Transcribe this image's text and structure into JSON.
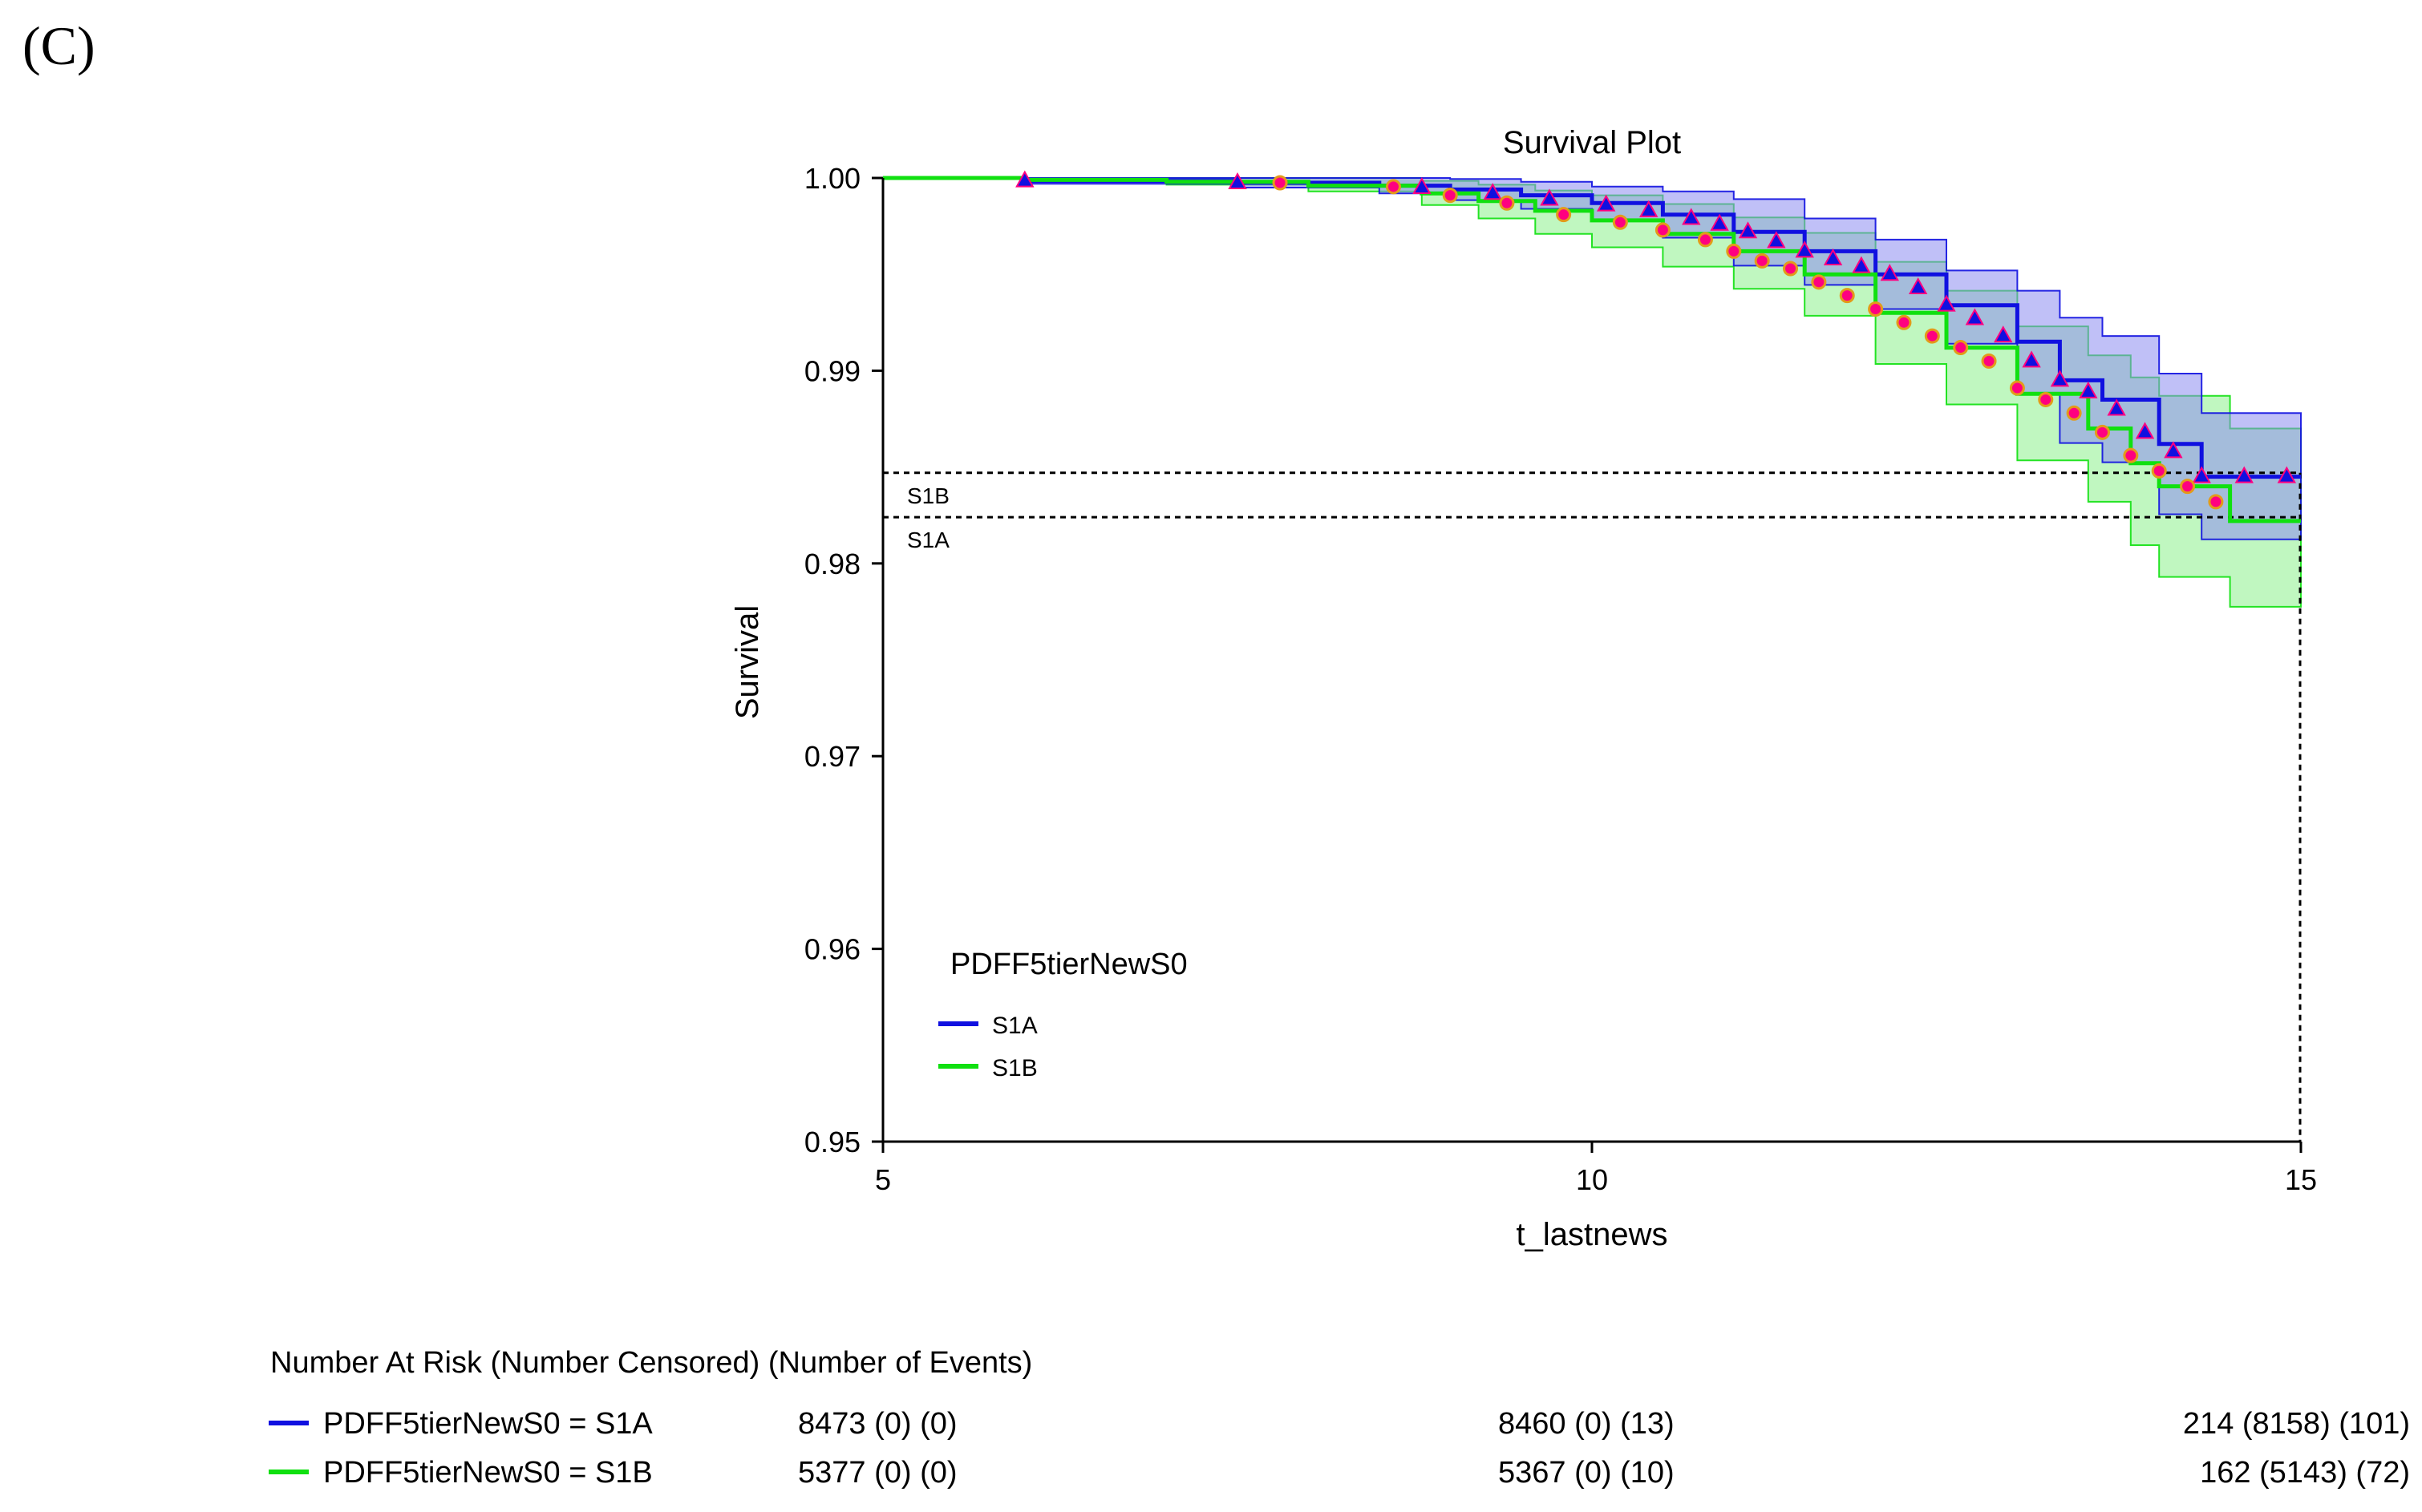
{
  "panel_label": "(C)",
  "colors": {
    "s1a": "#1010e0",
    "s1b": "#10e010",
    "s1a_band": "#8c8cf0",
    "s1b_band": "#8cf08c",
    "censor_fill": "#ff0080",
    "axis": "#000000"
  },
  "chart_data": {
    "type": "line",
    "title": "Survival Plot",
    "xlabel": "t_lastnews",
    "ylabel": "Survival",
    "xlim": [
      5,
      15
    ],
    "ylim": [
      0.95,
      1.0
    ],
    "xticks": [
      {
        "value": 5,
        "label": "5"
      },
      {
        "value": 10,
        "label": "10"
      },
      {
        "value": 15,
        "label": "15"
      }
    ],
    "yticks": [
      {
        "value": 0.95,
        "label": "0.95"
      },
      {
        "value": 0.96,
        "label": "0.96"
      },
      {
        "value": 0.97,
        "label": "0.97"
      },
      {
        "value": 0.98,
        "label": "0.98"
      },
      {
        "value": 0.99,
        "label": "0.99"
      },
      {
        "value": 1.0,
        "label": "1.00"
      }
    ],
    "legend": {
      "title": "PDFF5tierNewS0",
      "position": "bottom-left",
      "entries": [
        {
          "key": "s1a",
          "label": "S1A"
        },
        {
          "key": "s1b",
          "label": "S1B"
        }
      ]
    },
    "series": [
      {
        "key": "s1a",
        "name": "S1A",
        "x": [
          5,
          6.0,
          7.5,
          8.5,
          9.0,
          9.5,
          10.0,
          10.5,
          11.0,
          11.5,
          12.0,
          12.5,
          13.0,
          13.3,
          13.6,
          14.0,
          14.3,
          15
        ],
        "y": [
          1.0,
          0.99985,
          0.99975,
          0.9996,
          0.9994,
          0.9991,
          0.9987,
          0.9981,
          0.9972,
          0.9962,
          0.995,
          0.9934,
          0.9915,
          0.9895,
          0.9885,
          0.9862,
          0.9845,
          0.9845
        ],
        "upper": [
          1.0,
          1.0,
          1.0,
          1.0,
          0.99995,
          0.9998,
          0.99955,
          0.9993,
          0.9989,
          0.9979,
          0.9968,
          0.9952,
          0.99415,
          0.99275,
          0.9918,
          0.98985,
          0.9878,
          0.9878
        ],
        "lower": [
          1.0,
          0.9997,
          0.9995,
          0.9992,
          0.99885,
          0.9984,
          0.99785,
          0.9969,
          0.99545,
          0.99445,
          0.9932,
          0.9914,
          0.98885,
          0.98625,
          0.98525,
          0.98255,
          0.98125,
          0.98125
        ],
        "censor_x": [
          6.0,
          7.5,
          8.8,
          9.3,
          9.7,
          10.1,
          10.4,
          10.7,
          10.9,
          11.1,
          11.3,
          11.5,
          11.7,
          11.9,
          12.1,
          12.3,
          12.5,
          12.7,
          12.9,
          13.1,
          13.3,
          13.5,
          13.7,
          13.9,
          14.1,
          14.3,
          14.6,
          14.9
        ],
        "censor_y": [
          0.99985,
          0.99975,
          0.9995,
          0.9992,
          0.9989,
          0.9986,
          0.9983,
          0.9979,
          0.9976,
          0.9972,
          0.9967,
          0.9962,
          0.9958,
          0.9954,
          0.995,
          0.9943,
          0.9934,
          0.9927,
          0.9918,
          0.9905,
          0.9895,
          0.9889,
          0.988,
          0.9868,
          0.9858,
          0.9845,
          0.9845,
          0.9845
        ]
      },
      {
        "key": "s1b",
        "name": "S1B",
        "x": [
          5,
          6.0,
          7.0,
          8.0,
          8.8,
          9.2,
          9.6,
          10.0,
          10.5,
          11.0,
          11.5,
          12.0,
          12.5,
          13.0,
          13.5,
          13.8,
          14.0,
          14.5,
          15
        ],
        "y": [
          1.0,
          0.9999,
          0.9998,
          0.9996,
          0.9992,
          0.9988,
          0.9983,
          0.9978,
          0.9971,
          0.9962,
          0.995,
          0.993,
          0.9912,
          0.9888,
          0.987,
          0.9852,
          0.984,
          0.9822,
          0.9822
        ],
        "upper": [
          1.0,
          1.0,
          1.0,
          1.0,
          0.99985,
          0.99965,
          0.99935,
          0.9991,
          0.99865,
          0.99795,
          0.99715,
          0.99565,
          0.99415,
          0.9923,
          0.9908,
          0.98965,
          0.9887,
          0.987,
          0.987
        ],
        "lower": [
          1.0,
          0.9998,
          0.99965,
          0.9993,
          0.9986,
          0.9979,
          0.9971,
          0.9964,
          0.9954,
          0.99425,
          0.99285,
          0.99035,
          0.98825,
          0.98535,
          0.9832,
          0.98095,
          0.9793,
          0.97775,
          0.97775
        ],
        "censor_x": [
          7.8,
          8.6,
          9.0,
          9.4,
          9.8,
          10.2,
          10.5,
          10.8,
          11.0,
          11.2,
          11.4,
          11.6,
          11.8,
          12.0,
          12.2,
          12.4,
          12.6,
          12.8,
          13.0,
          13.2,
          13.4,
          13.6,
          13.8,
          14.0,
          14.2,
          14.4
        ],
        "censor_y": [
          0.99975,
          0.99955,
          0.9991,
          0.9987,
          0.9981,
          0.9977,
          0.9973,
          0.9968,
          0.9962,
          0.9957,
          0.9953,
          0.9946,
          0.9939,
          0.9932,
          0.9925,
          0.9918,
          0.9912,
          0.9905,
          0.9891,
          0.9885,
          0.9878,
          0.9868,
          0.9856,
          0.9848,
          0.984,
          0.9832
        ]
      }
    ],
    "median_lines": [
      {
        "label": "S1B",
        "y": 0.9847
      },
      {
        "label": "S1A",
        "y": 0.9824
      }
    ]
  },
  "risk_table": {
    "header": "Number At Risk (Number Censored) (Number of Events)",
    "rows": [
      {
        "key": "s1a",
        "label": "PDFF5tierNewS0 = S1A",
        "values": [
          "8473 (0) (0)",
          "8460 (0) (13)",
          "214 (8158) (101)"
        ]
      },
      {
        "key": "s1b",
        "label": "PDFF5tierNewS0 = S1B",
        "values": [
          "5377 (0) (0)",
          "5367 (0) (10)",
          "162 (5143) (72)"
        ]
      }
    ]
  }
}
